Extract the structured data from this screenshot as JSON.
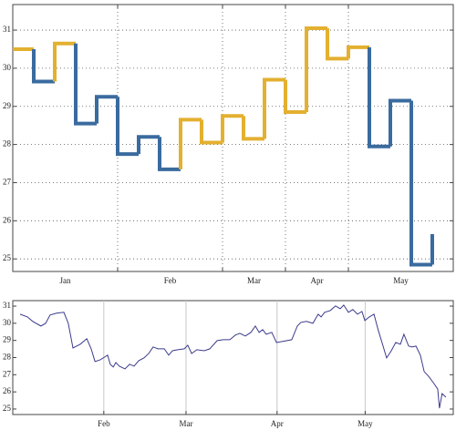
{
  "chart_data": [
    {
      "type": "step",
      "x": [
        0,
        1,
        2,
        3,
        4,
        5,
        6,
        7,
        8,
        9,
        10,
        11,
        12,
        13,
        14,
        15,
        16,
        17,
        18,
        19,
        20
      ],
      "values": [
        30.5,
        29.65,
        30.65,
        28.55,
        29.25,
        27.75,
        28.2,
        27.35,
        28.65,
        28.05,
        28.75,
        28.15,
        29.7,
        28.85,
        31.05,
        30.25,
        30.55,
        27.95,
        29.15,
        24.85,
        25.65
      ],
      "colors": [
        "#e3b030",
        "#3a6b9f",
        "#e3b030",
        "#3a6b9f",
        "#3a6b9f",
        "#3a6b9f",
        "#3a6b9f",
        "#3a6b9f",
        "#e3b030",
        "#e3b030",
        "#e3b030",
        "#e3b030",
        "#e3b030",
        "#e3b030",
        "#e3b030",
        "#e3b030",
        "#e3b030",
        "#3a6b9f",
        "#3a6b9f",
        "#3a6b9f",
        "#3a6b9f"
      ],
      "xlim": [
        0,
        21
      ],
      "ylim": [
        24.67,
        31.67
      ],
      "yticks": [
        25,
        26,
        27,
        28,
        29,
        30,
        31
      ],
      "xticks": [
        {
          "value": 2.5,
          "label": "Jan"
        },
        {
          "value": 7.5,
          "label": "Feb"
        },
        {
          "value": 11.5,
          "label": "Mar"
        },
        {
          "value": 14.5,
          "label": "Apr"
        },
        {
          "value": 18.5,
          "label": "May"
        }
      ],
      "xgrid": [
        5,
        10,
        13,
        16
      ],
      "grid": true
    },
    {
      "type": "line",
      "x": [
        2.5,
        5.0,
        6.8,
        9.6,
        11.2,
        12.7,
        14.9,
        17.4,
        18.9,
        20.5,
        23.0,
        25.2,
        26.7,
        28.0,
        29.8,
        32.3,
        33.2,
        34.2,
        35.1,
        36.3,
        38.2,
        39.8,
        41.3,
        42.9,
        44.7,
        46.3,
        47.8,
        49.4,
        51.6,
        53.1,
        54.4,
        56.2,
        58.4,
        59.6,
        60.9,
        62.7,
        65.2,
        67.1,
        69.6,
        71.7,
        73.9,
        75.8,
        77.3,
        79.2,
        81.1,
        82.6,
        83.9,
        85.1,
        86.3,
        88.2,
        89.8,
        91.9,
        95.0,
        96.9,
        98.1,
        100.0,
        102.2,
        104.0,
        105.0,
        106.2,
        108.1,
        109.9,
        111.5,
        112.7,
        114.3,
        115.8,
        117.4,
        118.9,
        119.9,
        121.4,
        123.0,
        124.5,
        126.1,
        127.3,
        128.9,
        130.4,
        132.0,
        133.2,
        134.8,
        136.0,
        137.3,
        138.8,
        140.1,
        141.6,
        143.2,
        144.7,
        145.3,
        146.2,
        147.5
      ],
      "values": [
        30.53,
        30.37,
        30.11,
        29.84,
        30.0,
        30.48,
        30.59,
        30.64,
        30.0,
        28.56,
        28.78,
        29.1,
        28.51,
        27.77,
        27.87,
        28.14,
        27.61,
        27.45,
        27.71,
        27.5,
        27.34,
        27.61,
        27.5,
        27.82,
        27.98,
        28.24,
        28.62,
        28.51,
        28.51,
        28.14,
        28.4,
        28.46,
        28.51,
        28.72,
        28.24,
        28.46,
        28.4,
        28.51,
        28.99,
        29.04,
        29.04,
        29.31,
        29.41,
        29.26,
        29.47,
        29.84,
        29.47,
        29.63,
        29.36,
        29.47,
        28.88,
        28.94,
        29.04,
        29.84,
        30.05,
        30.11,
        30.0,
        30.53,
        30.37,
        30.64,
        30.74,
        31.01,
        30.85,
        31.06,
        30.64,
        30.8,
        30.53,
        30.69,
        30.16,
        30.37,
        30.53,
        29.57,
        28.67,
        27.98,
        28.4,
        28.88,
        28.78,
        29.36,
        28.67,
        28.62,
        28.67,
        28.14,
        27.18,
        26.91,
        26.54,
        26.17,
        25.05,
        25.9,
        25.69
      ],
      "color": "#3b3b8c",
      "xlim": [
        0,
        150
      ],
      "ylim": [
        24.68,
        31.32
      ],
      "yticks": [
        25,
        26,
        27,
        28,
        29,
        30,
        31
      ],
      "xticks": [
        {
          "value": 31,
          "label": "Feb"
        },
        {
          "value": 59,
          "label": "Mar"
        },
        {
          "value": 90,
          "label": "Apr"
        },
        {
          "value": 120,
          "label": "May"
        }
      ],
      "grid": true
    }
  ]
}
